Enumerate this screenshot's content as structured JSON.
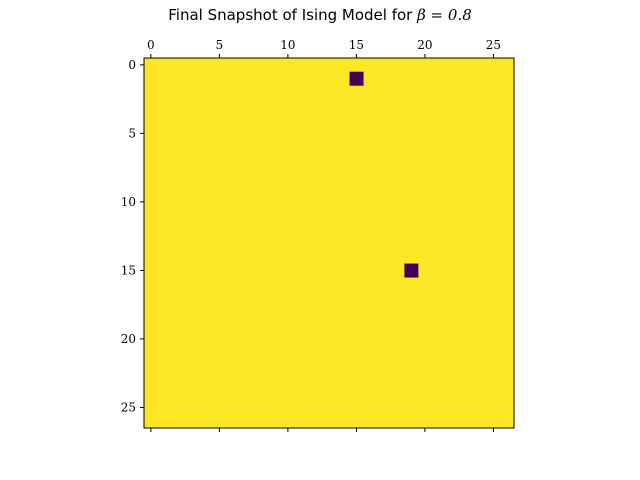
{
  "chart_data": {
    "type": "heatmap",
    "title_text": "Final Snapshot of Ising Model for ",
    "title_math": "β = 0.8",
    "rows": 27,
    "cols": 27,
    "background_value": 1,
    "flipped_cells": [
      {
        "row": 1,
        "col": 15,
        "value": -1
      },
      {
        "row": 15,
        "col": 19,
        "value": -1
      }
    ],
    "colors": {
      "1": "#fde725",
      "-1": "#440154"
    },
    "x_ticks": [
      "0",
      "5",
      "10",
      "15",
      "20",
      "25"
    ],
    "y_ticks": [
      "0",
      "5",
      "10",
      "15",
      "20",
      "25"
    ],
    "x_axis_position": "top",
    "xlabel": "",
    "ylabel": "",
    "grid": false
  }
}
